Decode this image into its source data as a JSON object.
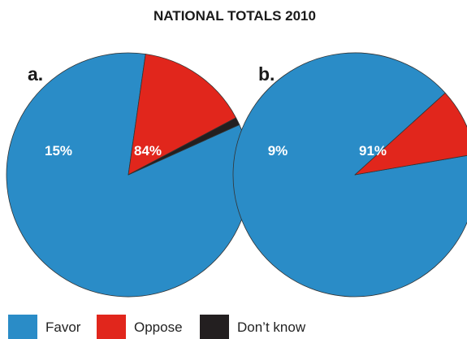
{
  "chart_data": {
    "type": "pie",
    "title": "NATIONAL TOTALS 2010",
    "legend": {
      "placement": "bottom-left",
      "entries": [
        {
          "label": "Favor",
          "color": "#2a8cc7"
        },
        {
          "label": "Oppose",
          "color": "#e1261c"
        },
        {
          "label": "Don’t know",
          "color": "#231f20"
        }
      ]
    },
    "pies": [
      {
        "panel": "a.",
        "slices": [
          {
            "category": "Favor",
            "value": 84,
            "label": "84%",
            "color": "#2a8cc7"
          },
          {
            "category": "Oppose",
            "value": 15,
            "label": "15%",
            "color": "#e1261c"
          },
          {
            "category": "Don’t know",
            "value": 1,
            "label": "",
            "color": "#231f20"
          }
        ]
      },
      {
        "panel": "b.",
        "slices": [
          {
            "category": "Favor",
            "value": 91,
            "label": "91%",
            "color": "#2a8cc7"
          },
          {
            "category": "Oppose",
            "value": 9,
            "label": "9%",
            "color": "#e1261c"
          },
          {
            "category": "Don’t know",
            "value": 0,
            "label": "",
            "color": "#231f20"
          }
        ]
      }
    ]
  }
}
